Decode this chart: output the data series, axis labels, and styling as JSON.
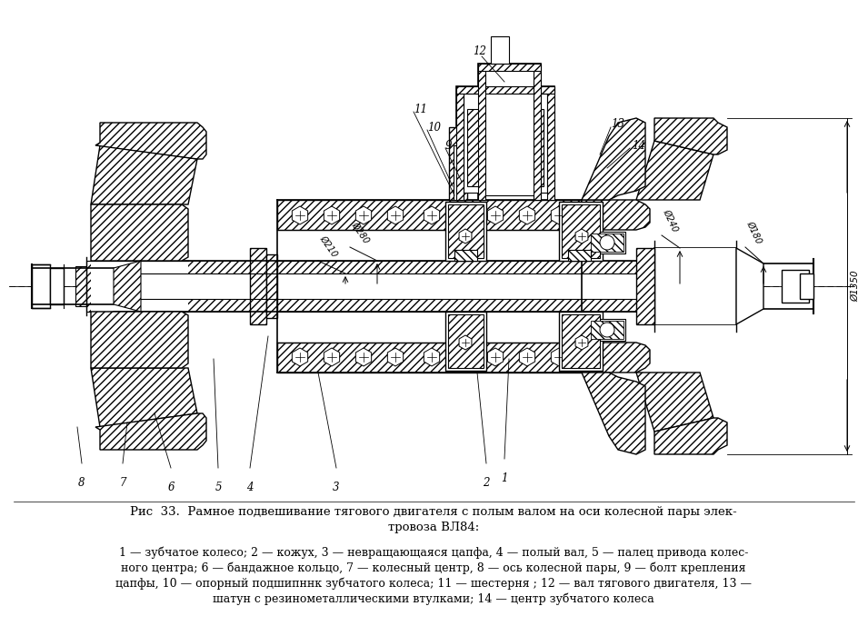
{
  "background_color": "#ffffff",
  "figure_width": 9.55,
  "figure_height": 7.0,
  "dpi": 100,
  "title_line1": "Рис  33.  Рамное подвешивание тягового двигателя с полым валом на оси колесной пары элек-",
  "title_line2": "тровоза ВЛ84:",
  "caption_line1": "1 — зубчатое колесо; 2 — кожух, 3 — невращающаяся цапфа, 4 — полый вал, 5 — палец привода колес-",
  "caption_line2": "ного центра; 6 — бандажное кольцо, 7 — колесный центр, 8 — ось колесной пары, 9 — болт крепления",
  "caption_line3": "цапфы, 10 — опорный подшипннк зубчатого колеса; 11 — шестерня ; 12 — вал тягового двигателя, 13 —",
  "caption_line4": "шатун с резинометаллическими втулками; 14 — центр зубчатого колеса",
  "text_color": "#000000",
  "line_color": "#000000"
}
